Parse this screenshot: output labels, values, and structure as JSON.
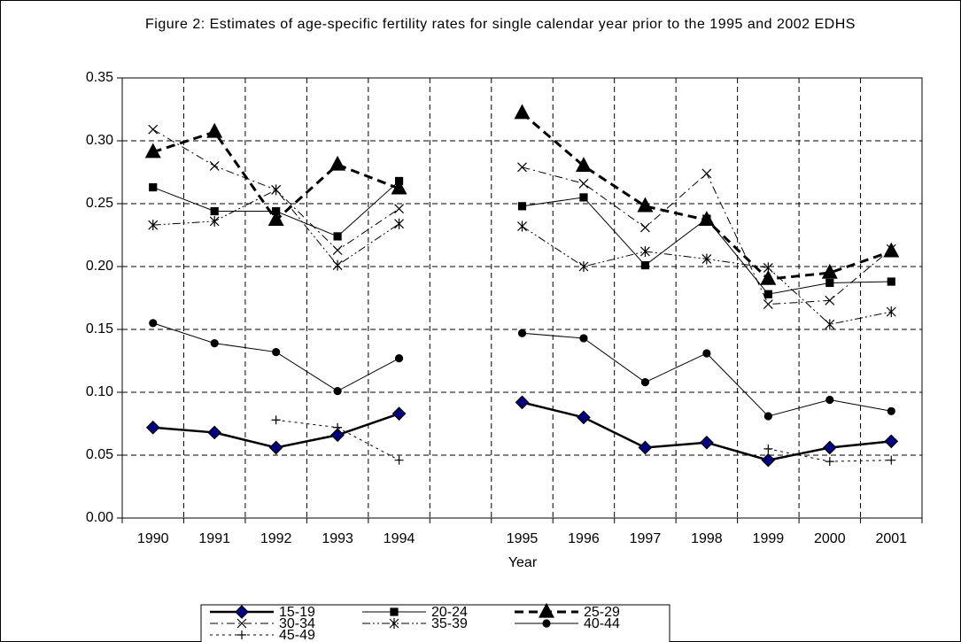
{
  "chart_data": {
    "type": "line",
    "title": "Figure 2: Estimates of age-specific fertility rates for single calendar year prior to the 1995 and 2002 EDHS",
    "x_label": "Year",
    "categories": [
      "1990",
      "1991",
      "1992",
      "1993",
      "1994",
      null,
      "1995",
      "1996",
      "1997",
      "1998",
      "1999",
      "2000",
      "2001"
    ],
    "ylim": [
      0,
      0.35
    ],
    "yticks": [
      {
        "value": 0,
        "label": "0.00"
      },
      0.05,
      {
        "value": 0.1,
        "label": "0.10"
      },
      0.15,
      {
        "value": 0.2,
        "label": "0.20"
      },
      0.25,
      {
        "value": 0.3,
        "label": "0.30"
      },
      0.35
    ],
    "grid": true,
    "legend": "bottom",
    "series": [
      {
        "name": "15-19",
        "color": "#000000",
        "marker": "diamond",
        "marker_fill": "#000080",
        "dash": "solid",
        "width": 2.5,
        "values": [
          0.072,
          0.068,
          0.056,
          0.066,
          0.083,
          null,
          0.092,
          0.08,
          0.056,
          0.06,
          0.046,
          0.056,
          0.061
        ]
      },
      {
        "name": "20-24",
        "color": "#000000",
        "marker": "square",
        "marker_fill": "#000000",
        "dash": "solid",
        "width": 1,
        "values": [
          0.263,
          0.244,
          0.244,
          0.224,
          0.268,
          null,
          0.248,
          0.255,
          0.201,
          0.238,
          0.178,
          0.187,
          0.188
        ]
      },
      {
        "name": "25-29",
        "color": "#000000",
        "marker": "triangle",
        "marker_fill": "#000000",
        "dash": "dash",
        "width": 3,
        "values": [
          0.291,
          0.307,
          0.237,
          0.281,
          0.262,
          null,
          0.322,
          0.28,
          0.248,
          0.237,
          0.19,
          0.195,
          0.212
        ]
      },
      {
        "name": "30-34",
        "color": "#000000",
        "marker": "x",
        "marker_fill": "#000000",
        "dash": "dashdot",
        "width": 1,
        "values": [
          0.309,
          0.28,
          0.261,
          0.213,
          0.246,
          null,
          0.279,
          0.266,
          0.231,
          0.274,
          0.17,
          0.173,
          0.214
        ]
      },
      {
        "name": "35-39",
        "color": "#000000",
        "marker": "asterisk",
        "marker_fill": "#000000",
        "dash": "dashdotdot",
        "width": 1,
        "values": [
          0.233,
          0.236,
          0.261,
          0.201,
          0.234,
          null,
          0.232,
          0.2,
          0.212,
          0.206,
          0.199,
          0.154,
          0.164
        ]
      },
      {
        "name": "40-44",
        "color": "#000000",
        "marker": "circle",
        "marker_fill": "#000000",
        "dash": "solid",
        "width": 1,
        "values": [
          0.155,
          0.139,
          0.132,
          0.101,
          0.127,
          null,
          0.147,
          0.143,
          0.108,
          0.131,
          0.081,
          0.094,
          0.085
        ]
      },
      {
        "name": "45-49",
        "color": "#000000",
        "marker": "plus",
        "marker_fill": "#000000",
        "dash": "dot",
        "width": 1,
        "values": [
          null,
          null,
          0.078,
          0.072,
          0.046,
          null,
          null,
          null,
          null,
          null,
          0.055,
          0.045,
          0.046
        ]
      }
    ]
  }
}
